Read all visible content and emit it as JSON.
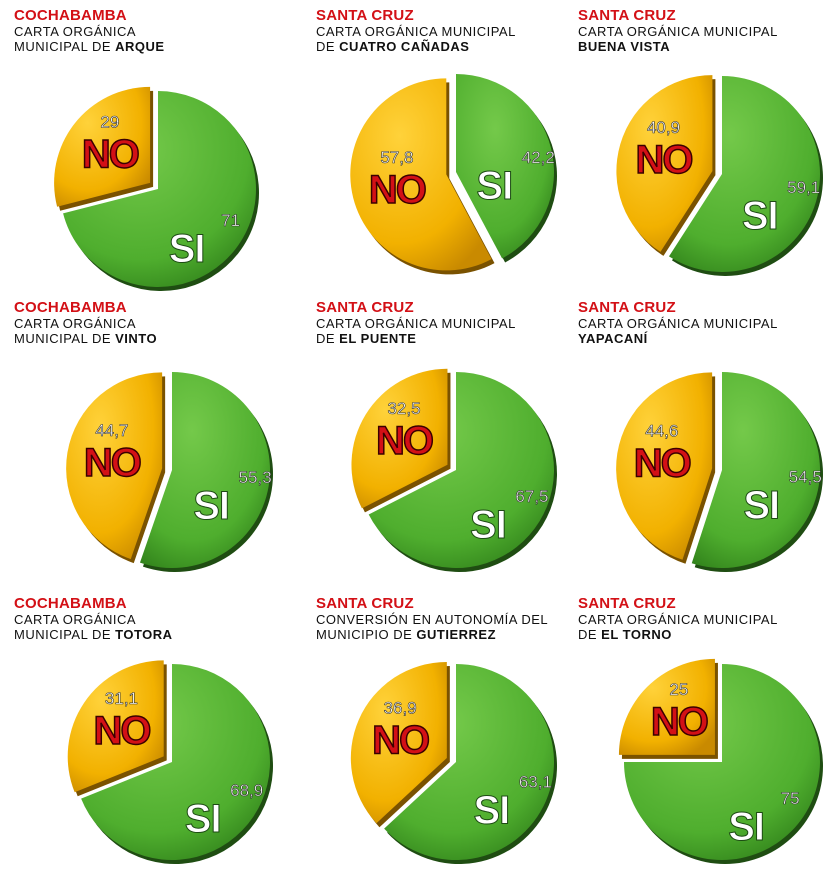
{
  "colors": {
    "region": "#d31016",
    "no_slice": "#f2b100",
    "si_slice": "#4fae2e",
    "no_label": "#d31016",
    "si_label": "#ffffff"
  },
  "chart_data": [
    {
      "type": "pie",
      "region": "COCHABAMBA",
      "subtitle_lines": [
        "CARTA ORGÁNICA",
        "MUNICIPAL DE"
      ],
      "place": "ARQUE",
      "categories": [
        "NO",
        "SI"
      ],
      "values": [
        29,
        71
      ],
      "value_labels": [
        "29",
        "71"
      ]
    },
    {
      "type": "pie",
      "region": "SANTA CRUZ",
      "subtitle_lines": [
        "CARTA ORGÁNICA MUNICIPAL",
        "DE"
      ],
      "place": "CUATRO CAÑADAS",
      "categories": [
        "NO",
        "SI"
      ],
      "values": [
        57.8,
        42.2
      ],
      "value_labels": [
        "57,8",
        "42,2"
      ]
    },
    {
      "type": "pie",
      "region": "SANTA CRUZ",
      "subtitle_lines": [
        "CARTA ORGÁNICA MUNICIPAL",
        ""
      ],
      "place": "BUENA VISTA",
      "categories": [
        "NO",
        "SI"
      ],
      "values": [
        40.9,
        59.1
      ],
      "value_labels": [
        "40,9",
        "59,1"
      ]
    },
    {
      "type": "pie",
      "region": "COCHABAMBA",
      "subtitle_lines": [
        "CARTA ORGÁNICA",
        "MUNICIPAL DE"
      ],
      "place": "VINTO",
      "categories": [
        "NO",
        "SI"
      ],
      "values": [
        44.7,
        55.3
      ],
      "value_labels": [
        "44,7",
        "55,3"
      ]
    },
    {
      "type": "pie",
      "region": "SANTA CRUZ",
      "subtitle_lines": [
        "CARTA ORGÁNICA MUNICIPAL",
        "DE"
      ],
      "place": "EL PUENTE",
      "categories": [
        "NO",
        "SI"
      ],
      "values": [
        32.5,
        67.5
      ],
      "value_labels": [
        "32,5",
        "67,5"
      ]
    },
    {
      "type": "pie",
      "region": "SANTA CRUZ",
      "subtitle_lines": [
        "CARTA ORGÁNICA MUNICIPAL",
        ""
      ],
      "place": "YAPACANÍ",
      "categories": [
        "NO",
        "SI"
      ],
      "values": [
        44.6,
        54.5
      ],
      "value_labels": [
        "44,6",
        "54,5"
      ]
    },
    {
      "type": "pie",
      "region": "COCHABAMBA",
      "subtitle_lines": [
        "CARTA ORGÁNICA",
        "MUNICIPAL DE"
      ],
      "place": "TOTORA",
      "categories": [
        "NO",
        "SI"
      ],
      "values": [
        31.1,
        68.9
      ],
      "value_labels": [
        "31,1",
        "68,9"
      ]
    },
    {
      "type": "pie",
      "region": "SANTA CRUZ",
      "subtitle_lines": [
        "CONVERSIÓN EN AUTONOMÍA DEL",
        "MUNICIPIO DE"
      ],
      "place": "GUTIERREZ",
      "categories": [
        "NO",
        "SI"
      ],
      "values": [
        36.9,
        63.1
      ],
      "value_labels": [
        "36,9",
        "63,1"
      ]
    },
    {
      "type": "pie",
      "region": "SANTA CRUZ",
      "subtitle_lines": [
        "CARTA ORGÁNICA MUNICIPAL",
        "DE"
      ],
      "place": "EL TORNO",
      "categories": [
        "NO",
        "SI"
      ],
      "values": [
        25,
        75
      ],
      "value_labels": [
        "25",
        "75"
      ]
    }
  ]
}
